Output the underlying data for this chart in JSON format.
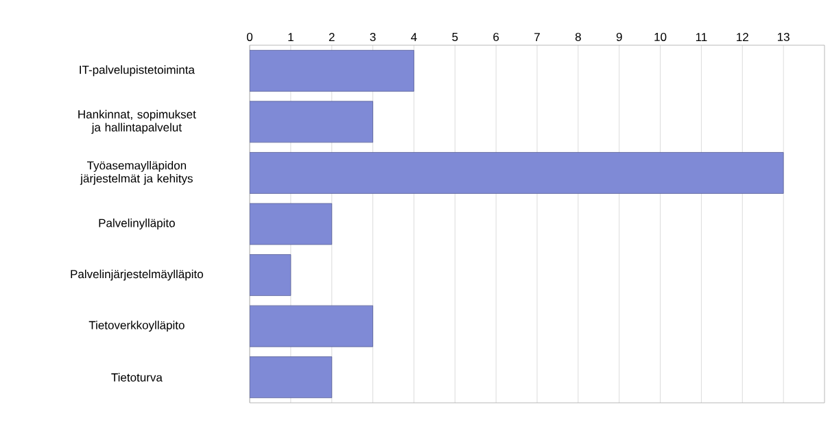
{
  "chart_data": {
    "type": "bar",
    "orientation": "horizontal",
    "categories": [
      "IT-palvelupistetoiminta",
      "Hankinnat, sopimukset ja hallintapalvelut",
      "Työasemaylläpidon järjestelmät ja kehitys",
      "Palvelinylläpito",
      "Palvelinjärjestelmäylläpito",
      "Tietoverkkoylläpito",
      "Tietoturva"
    ],
    "values": [
      4,
      3,
      13,
      2,
      1,
      3,
      2
    ],
    "color": "#7f8ad6",
    "xlim": [
      0,
      14
    ],
    "xticks": [
      0,
      1,
      2,
      3,
      4,
      5,
      6,
      7,
      8,
      9,
      10,
      11,
      12,
      13
    ],
    "grid": "x"
  }
}
